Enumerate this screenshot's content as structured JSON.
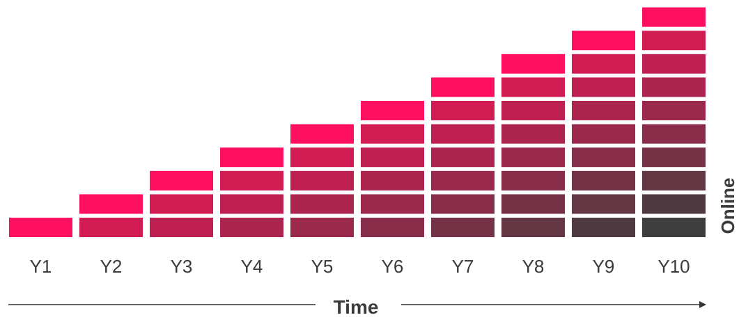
{
  "chart_data": {
    "type": "bar",
    "stacked": true,
    "categories": [
      "Y1",
      "Y2",
      "Y3",
      "Y4",
      "Y5",
      "Y6",
      "Y7",
      "Y8",
      "Y9",
      "Y10"
    ],
    "values": [
      1,
      2,
      3,
      4,
      5,
      6,
      7,
      8,
      9,
      10
    ],
    "xlabel": "Time",
    "ylabel": "Online",
    "grid": false,
    "legend": "none",
    "colors": {
      "top_block": "#ff0f5f",
      "gradient_start": "#e31857",
      "gradient_end": "#3e3e3e"
    }
  }
}
